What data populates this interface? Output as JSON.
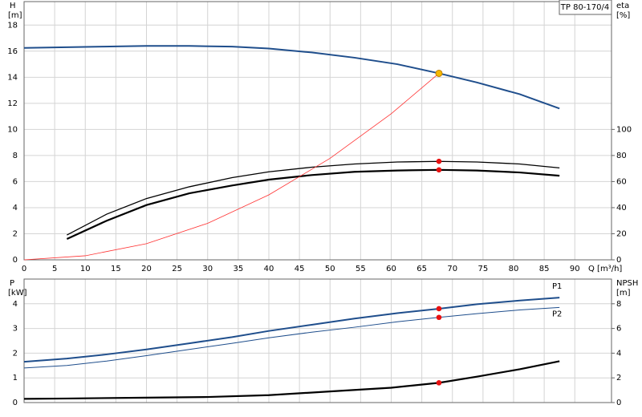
{
  "chart_data": [
    {
      "type": "line",
      "title": "TP 80-170/4",
      "y_label": "H",
      "y_unit": "[m]",
      "y2_label": "eta",
      "y2_unit": "[%]",
      "x_label": "Q [m³/h]",
      "xlim": [
        0,
        96
      ],
      "xticks": [
        0,
        5,
        10,
        15,
        20,
        25,
        30,
        35,
        40,
        45,
        50,
        55,
        60,
        65,
        70,
        75,
        80,
        85,
        90
      ],
      "ylim": [
        0,
        19.8
      ],
      "yticks": [
        0,
        2,
        4,
        6,
        8,
        10,
        12,
        14,
        16,
        18
      ],
      "y2lim": [
        0,
        198
      ],
      "y2ticks": [
        0,
        20,
        40,
        60,
        80,
        100
      ],
      "grid": true,
      "series": [
        {
          "color": "#1f4e8c",
          "linewidth": 2,
          "x": [
            0,
            7,
            13,
            20,
            27,
            34,
            40,
            47,
            54,
            61,
            67.8,
            74,
            81,
            87.5
          ],
          "values": [
            16.25,
            16.3,
            16.35,
            16.4,
            16.4,
            16.35,
            16.2,
            15.9,
            15.5,
            15.0,
            14.3,
            13.6,
            12.7,
            11.6
          ]
        },
        {
          "color": "#000000",
          "linewidth": 1.3,
          "axis": "y2",
          "x": [
            7,
            13.5,
            20,
            27,
            34,
            40,
            47,
            54,
            61,
            67.8,
            74,
            81,
            87.5
          ],
          "values": [
            19,
            35,
            47,
            56,
            63,
            67.5,
            71,
            73.5,
            75,
            75.5,
            75,
            73.5,
            70.5
          ]
        },
        {
          "color": "#000000",
          "linewidth": 2.2,
          "axis": "y2",
          "x": [
            7,
            13.5,
            20,
            27,
            34,
            40,
            47,
            54,
            61,
            67.8,
            74,
            81,
            87.5
          ],
          "values": [
            16,
            30,
            42,
            51,
            57,
            61.5,
            65,
            67.5,
            68.5,
            69,
            68.5,
            67,
            64.5
          ]
        },
        {
          "color": "#ff3030",
          "linewidth": 0.8,
          "x": [
            0,
            10,
            20,
            30,
            40,
            50,
            60,
            67.8
          ],
          "values": [
            0,
            0.31,
            1.24,
            2.8,
            4.98,
            7.78,
            11.2,
            14.3
          ]
        }
      ],
      "points": [
        {
          "x": 67.8,
          "y": 14.3,
          "color": "#f5b800"
        },
        {
          "x": 67.8,
          "y": 75.5,
          "axis": "y2",
          "color": "#e81010"
        },
        {
          "x": 67.8,
          "y": 69,
          "axis": "y2",
          "color": "#e81010"
        }
      ]
    },
    {
      "type": "line",
      "y_label": "P",
      "y_unit": "[kW]",
      "y2_label": "NPSH",
      "y2_unit": "[m]",
      "xlim": [
        0,
        96
      ],
      "ylim": [
        0,
        5
      ],
      "yticks": [
        0,
        1,
        2,
        3,
        4
      ],
      "y2lim": [
        0,
        10
      ],
      "y2ticks": [
        0,
        2,
        4,
        6,
        8
      ],
      "grid": true,
      "series": [
        {
          "name": "P1",
          "color": "#1f4e8c",
          "linewidth": 2,
          "x": [
            0,
            7,
            13.5,
            20,
            27,
            34,
            40,
            47,
            54,
            61,
            67.8,
            74,
            81,
            87.5
          ],
          "values": [
            1.65,
            1.78,
            1.95,
            2.15,
            2.4,
            2.65,
            2.9,
            3.15,
            3.4,
            3.62,
            3.8,
            3.98,
            4.13,
            4.25
          ]
        },
        {
          "name": "P2",
          "color": "#1f4e8c",
          "linewidth": 1,
          "x": [
            0,
            7,
            13.5,
            20,
            27,
            34,
            40,
            47,
            54,
            61,
            67.8,
            74,
            81,
            87.5
          ],
          "values": [
            1.4,
            1.5,
            1.68,
            1.9,
            2.15,
            2.4,
            2.62,
            2.85,
            3.05,
            3.27,
            3.45,
            3.6,
            3.75,
            3.85
          ]
        },
        {
          "color": "#000000",
          "linewidth": 2.2,
          "axis": "y2",
          "x": [
            0,
            7,
            20,
            30,
            40,
            50,
            60,
            67.8,
            74,
            81,
            87.5
          ],
          "values": [
            0.3,
            0.33,
            0.4,
            0.45,
            0.6,
            0.9,
            1.2,
            1.6,
            2.1,
            2.7,
            3.35
          ]
        }
      ],
      "points": [
        {
          "x": 67.8,
          "y": 3.8,
          "color": "#e81010"
        },
        {
          "x": 67.8,
          "y": 3.45,
          "color": "#e81010"
        },
        {
          "x": 67.8,
          "y": 1.6,
          "axis": "y2",
          "color": "#e81010"
        }
      ]
    }
  ]
}
